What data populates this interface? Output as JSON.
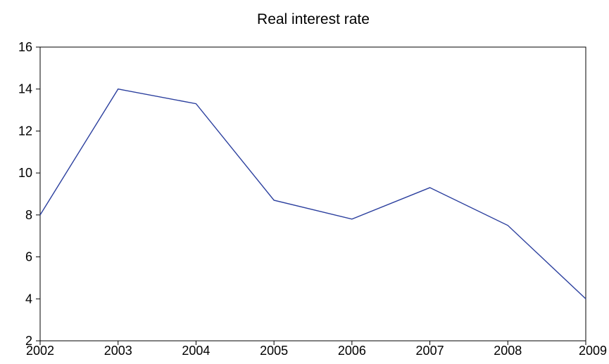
{
  "chart_data": {
    "type": "line",
    "title": "Real interest rate",
    "xlabel": "",
    "ylabel": "",
    "x": [
      "2002",
      "2003",
      "2004",
      "2005",
      "2006",
      "2007",
      "2008",
      "2009"
    ],
    "series": [
      {
        "values": [
          8.0,
          14.0,
          13.3,
          8.7,
          7.8,
          9.3,
          7.5,
          4.0
        ]
      }
    ],
    "ylim": [
      2,
      16
    ],
    "yticks": [
      "2",
      "4",
      "6",
      "8",
      "10",
      "12",
      "14",
      "16"
    ],
    "xticks": [
      "2002",
      "2003",
      "2004",
      "2005",
      "2006",
      "2007",
      "2008",
      "2009"
    ],
    "grid": false,
    "legend": "none",
    "line_color": "#2b3f9e"
  }
}
